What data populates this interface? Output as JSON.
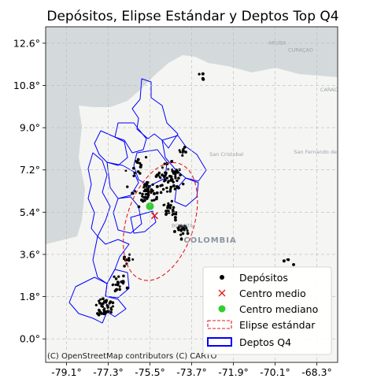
{
  "chart_data": {
    "type": "scatter",
    "title": "Depósitos, Elipse Estándar y Deptos Top Q4",
    "xlim": [
      -80.0,
      -67.4
    ],
    "ylim": [
      -1.0,
      13.3
    ],
    "x_ticks": [
      -79.1,
      -77.3,
      -75.5,
      -73.7,
      -71.9,
      -70.1,
      -68.3
    ],
    "x_tick_labels": [
      "-79.1°",
      "-77.3°",
      "-75.5°",
      "-73.7°",
      "-71.9°",
      "-70.1°",
      "-68.3°"
    ],
    "y_ticks": [
      0.0,
      1.8,
      3.6,
      5.4,
      7.2,
      9.0,
      10.8,
      12.6
    ],
    "y_tick_labels": [
      "0.0°",
      "1.8°",
      "3.6°",
      "5.4°",
      "7.2°",
      "9.0°",
      "10.8°",
      "12.6°"
    ],
    "grid": true,
    "legend_position": "lower-right",
    "legend": [
      {
        "label": "Depósitos",
        "marker": "dot",
        "color": "#000000"
      },
      {
        "label": "Centro medio",
        "marker": "x",
        "color": "#e31a1c"
      },
      {
        "label": "Centro mediano",
        "marker": "circle",
        "color": "#32cd32"
      },
      {
        "label": "Elipse estándar",
        "marker": "dashed-rect",
        "color": "#e31a1c"
      },
      {
        "label": "Deptos Q4",
        "marker": "rect",
        "color": "#0000ff"
      }
    ],
    "centro_medio": {
      "x": -75.3,
      "y": 5.25
    },
    "centro_mediano": {
      "x": -75.5,
      "y": 5.65
    },
    "elipse_estandar": {
      "cx": -75.05,
      "cy": 5.0,
      "rx": 1.45,
      "ry": 2.6,
      "rotation_deg": 18
    },
    "depositos_clusters": [
      {
        "x": -74.7,
        "y": 6.9,
        "spread": 0.55,
        "n": 60
      },
      {
        "x": -75.6,
        "y": 6.2,
        "spread": 0.5,
        "n": 50
      },
      {
        "x": -74.6,
        "y": 5.5,
        "spread": 0.35,
        "n": 25
      },
      {
        "x": -75.9,
        "y": 7.3,
        "spread": 0.4,
        "n": 15
      },
      {
        "x": -74.1,
        "y": 4.6,
        "spread": 0.3,
        "n": 20
      },
      {
        "x": -77.4,
        "y": 1.3,
        "spread": 0.35,
        "n": 45
      },
      {
        "x": -76.8,
        "y": 2.3,
        "spread": 0.35,
        "n": 20
      },
      {
        "x": -74.0,
        "y": 7.9,
        "spread": 0.2,
        "n": 8
      },
      {
        "x": -76.5,
        "y": 3.4,
        "spread": 0.25,
        "n": 10
      },
      {
        "x": -73.3,
        "y": 11.2,
        "spread": 0.15,
        "n": 4
      },
      {
        "x": -69.5,
        "y": 3.3,
        "spread": 0.3,
        "n": 4
      }
    ],
    "map_labels": [
      {
        "text": "COLOMBIA",
        "x": -72.9,
        "y": 4.1
      },
      {
        "text": "BOGOTÁ",
        "x": -74.1,
        "y": 4.75
      },
      {
        "text": "CARACA",
        "x": -67.7,
        "y": 10.55
      },
      {
        "text": "San Cristobal",
        "x": -72.2,
        "y": 7.8
      },
      {
        "text": "San Fernando de Apure",
        "x": -68.0,
        "y": 7.9
      },
      {
        "text": "ARUBA",
        "x": -70.0,
        "y": 12.55
      },
      {
        "text": "CURAÇAO",
        "x": -69.0,
        "y": 12.25
      }
    ],
    "attribution": "(C) OpenStreetMap contributors (C) CARTO"
  }
}
